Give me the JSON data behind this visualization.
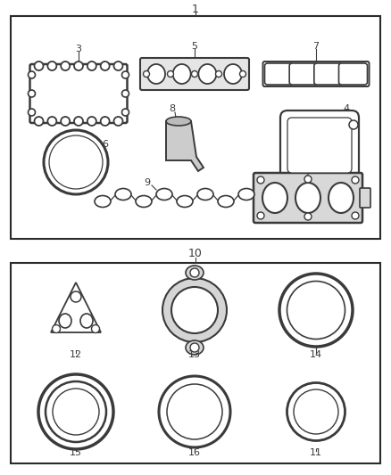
{
  "bg_color": "#ffffff",
  "line_color": "#3a3a3a",
  "box_border_color": "#2a2a2a",
  "label_color": "#2a2a2a",
  "fig_width": 4.38,
  "fig_height": 5.33,
  "dpi": 100
}
